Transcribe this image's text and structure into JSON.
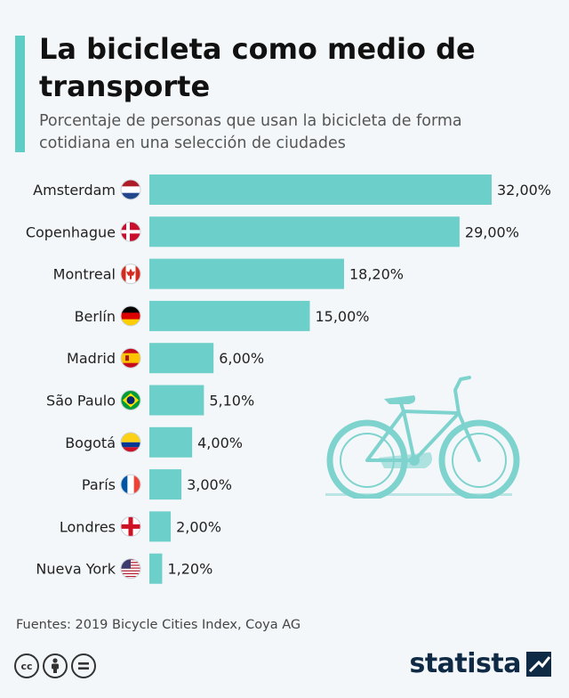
{
  "header": {
    "title": "La bicicleta como medio de transporte",
    "subtitle": "Porcentaje de personas que usan la bicicleta de forma cotidiana en una selección de ciudades",
    "accent_color": "#5dcdc6"
  },
  "chart_data": {
    "type": "bar",
    "orientation": "horizontal",
    "title": "La bicicleta como medio de transporte",
    "categories": [
      "Amsterdam",
      "Copenhague",
      "Montreal",
      "Berlín",
      "Madrid",
      "São Paulo",
      "Bogotá",
      "París",
      "Londres",
      "Nueva York"
    ],
    "values": [
      32.0,
      29.0,
      18.2,
      15.0,
      6.0,
      5.1,
      4.0,
      3.0,
      2.0,
      1.2
    ],
    "value_labels": [
      "32,00%",
      "29,00%",
      "18,20%",
      "15,00%",
      "6,00%",
      "5,10%",
      "4,00%",
      "3,00%",
      "2,00%",
      "1,20%"
    ],
    "flags": [
      "netherlands-flag-icon",
      "denmark-flag-icon",
      "canada-flag-icon",
      "germany-flag-icon",
      "spain-flag-icon",
      "brazil-flag-icon",
      "colombia-flag-icon",
      "france-flag-icon",
      "england-flag-icon",
      "usa-flag-icon"
    ],
    "xlim": [
      0,
      32
    ],
    "bar_color": "#6ccfc9",
    "grid": false
  },
  "illustration": {
    "icon": "bicycle-icon",
    "color": "#7fd3cf"
  },
  "footer": {
    "source": "Fuentes: 2019 Bicycle Cities Index, Coya AG",
    "license_icons": [
      "cc-icon",
      "by-icon",
      "nd-icon"
    ],
    "cc_text": "cc",
    "brand": "statista"
  }
}
